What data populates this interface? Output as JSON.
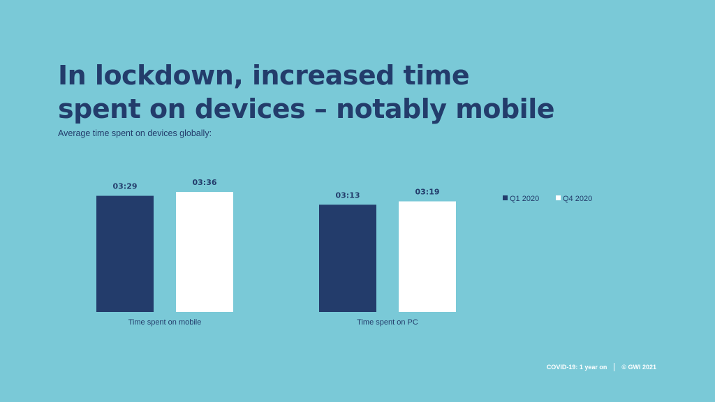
{
  "title_line1": "In lockdown, increased time",
  "title_line2": "spent on devices – notably mobile",
  "subtitle": "Average time spent on devices globally:",
  "footer": {
    "left": "COVID-19: 1 year on",
    "right": "© GWI 2021"
  },
  "colors": {
    "background": "#7ac9d7",
    "q1": "#233c6b",
    "q4": "#ffffff",
    "text": "#233c6b"
  },
  "chart_data": {
    "type": "bar",
    "categories": [
      "Time spent on mobile",
      "Time spent on PC"
    ],
    "series": [
      {
        "name": "Q1 2020",
        "values": [
          209,
          193
        ],
        "labels": [
          "03:29",
          "03:13"
        ],
        "color": "#233c6b"
      },
      {
        "name": "Q4 2020",
        "values": [
          216,
          199
        ],
        "labels": [
          "03:36",
          "03:19"
        ],
        "color": "#ffffff"
      }
    ],
    "value_unit": "minutes",
    "legend_position": "top-right",
    "grid": false
  }
}
